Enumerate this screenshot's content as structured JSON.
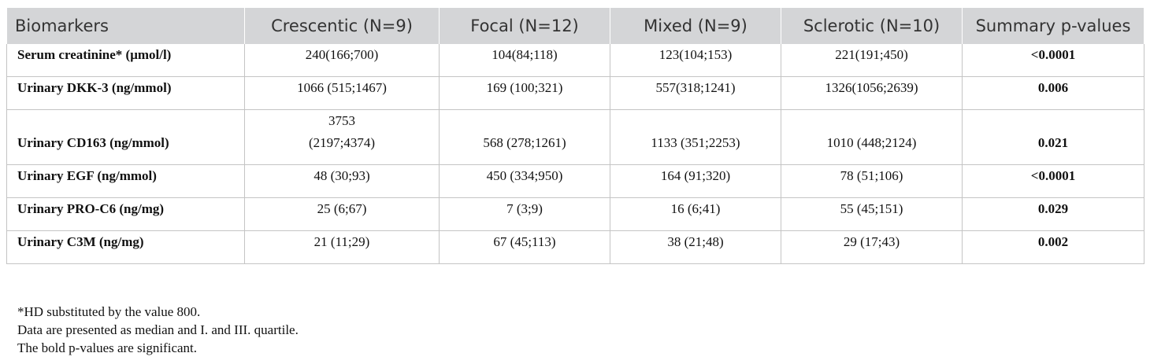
{
  "table": {
    "header": [
      "Biomarkers",
      "Crescentic (N=9)",
      "Focal (N=12)",
      "Mixed (N=9)",
      "Sclerotic (N=10)",
      "Summary p-values"
    ],
    "rows": [
      [
        "Serum creatinine* (μmol/l)",
        "240(166;700)",
        "104(84;118)",
        "123(104;153)",
        "221(191;450)",
        "<0.0001"
      ],
      [
        "Urinary DKK-3 (ng/mmol)",
        "1066 (515;1467)",
        "169 (100;321)",
        "557(318;1241)",
        "1326(1056;2639)",
        "0.006"
      ],
      [
        "Urinary CD163 (ng/mmol)",
        "3753 (2197;4374)",
        "568 (278;1261)",
        "1133 (351;2253)",
        "1010 (448;2124)",
        "0.021"
      ],
      [
        "Urinary EGF (ng/mmol)",
        "48 (30;93)",
        "450 (334;950)",
        "164 (91;320)",
        "78 (51;106)",
        "<0.0001"
      ],
      [
        "Urinary PRO-C6 (ng/mg)",
        "25 (6;67)",
        "7 (3;9)",
        "16 (6;41)",
        "55 (45;151)",
        "0.029"
      ],
      [
        "Urinary C3M (ng/mg)",
        "21 (11;29)",
        "67 (45;113)",
        "38 (21;48)",
        "29 (17;43)",
        "0.002"
      ]
    ]
  },
  "notes": [
    "*HD substituted by the value 800.",
    "Data are presented as median and I. and III. quartile.",
    "The bold p-values are significant."
  ]
}
